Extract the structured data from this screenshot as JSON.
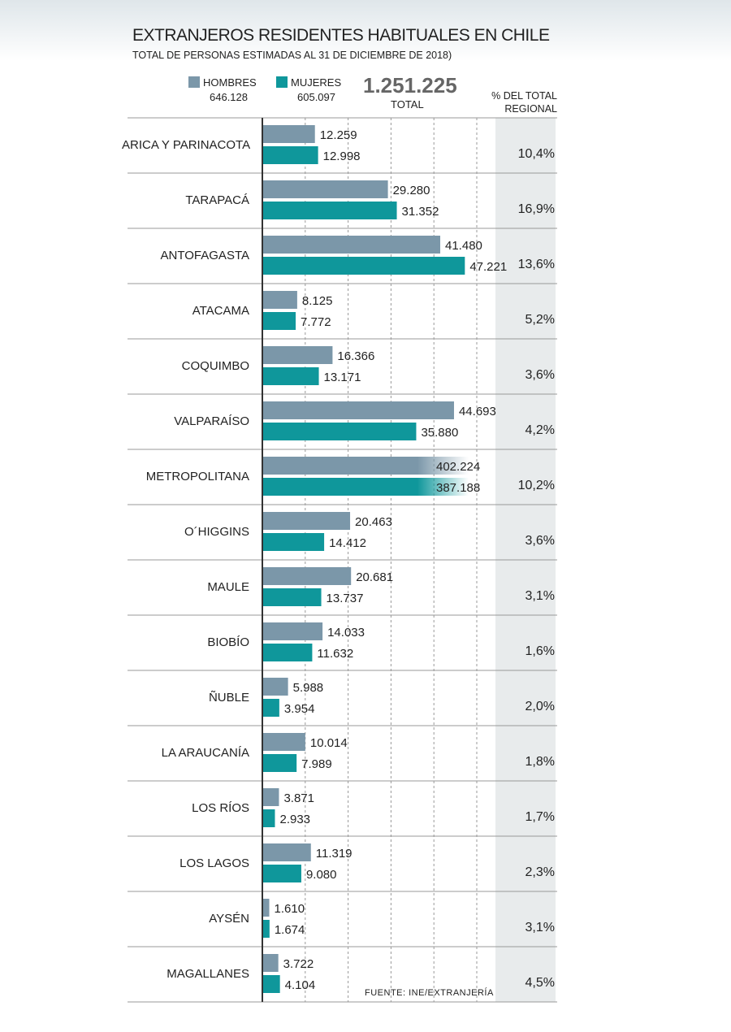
{
  "chart_data": {
    "type": "bar",
    "orientation": "horizontal",
    "title": "EXTRANJEROS RESIDENTES HABITUALES EN CHILE",
    "subtitle": "TOTAL DE PERSONAS ESTIMADAS AL 31 DE DICIEMBRE DE 2018)",
    "categories": [
      "ARICA Y PARINACOTA",
      "TARAPACÁ",
      "ANTOFAGASTA",
      "ATACAMA",
      "COQUIMBO",
      "VALPARAÍSO",
      "METROPOLITANA",
      "O´HIGGINS",
      "MAULE",
      "BIOBÍO",
      "ÑUBLE",
      "LA ARAUCANÍA",
      "LOS RÍOS",
      "LOS LAGOS",
      "AYSÉN",
      "MAGALLANES"
    ],
    "series": [
      {
        "name": "HOMBRES",
        "color": "#7b97a9",
        "total": 646128,
        "total_label": "646.128",
        "values": [
          12259,
          29280,
          41480,
          8125,
          16366,
          44693,
          402224,
          20463,
          20681,
          14033,
          5988,
          10014,
          3871,
          11319,
          1610,
          3722
        ],
        "value_labels": [
          "12.259",
          "29.280",
          "41.480",
          "8.125",
          "16.366",
          "44.693",
          "402.224",
          "20.463",
          "20.681",
          "14.033",
          "5.988",
          "10.014",
          "3.871",
          "11.319",
          "1.610",
          "3.722"
        ]
      },
      {
        "name": "MUJERES",
        "color": "#0f979b",
        "total": 605097,
        "total_label": "605.097",
        "values": [
          12998,
          31352,
          47221,
          7772,
          13171,
          35880,
          387188,
          14412,
          13737,
          11632,
          3954,
          7989,
          2933,
          9080,
          1674,
          4104
        ],
        "value_labels": [
          "12.998",
          "31.352",
          "47.221",
          "7.772",
          "13.171",
          "35.880",
          "387.188",
          "14.412",
          "13.737",
          "11.632",
          "3.954",
          "7.989",
          "2.933",
          "9.080",
          "1.674",
          "4.104"
        ]
      }
    ],
    "total": 1251225,
    "total_label": "1.251.225",
    "total_caption": "TOTAL",
    "share_header": "% DEL TOTAL REGIONAL",
    "shares": [
      10.4,
      16.9,
      13.6,
      5.2,
      3.6,
      4.2,
      10.2,
      3.6,
      3.1,
      1.6,
      2.0,
      1.8,
      1.7,
      2.3,
      3.1,
      4.5
    ],
    "share_labels": [
      "10,4%",
      "16,9%",
      "13,6%",
      "5,2%",
      "3,6%",
      "4,2%",
      "10,2%",
      "3,6%",
      "3,1%",
      "1,6%",
      "2,0%",
      "1,8%",
      "1,7%",
      "2,3%",
      "3,1%",
      "4,5%"
    ],
    "xlim": [
      0,
      50000
    ],
    "xticks": [
      0,
      10000,
      20000,
      30000,
      40000,
      50000
    ],
    "grid": true,
    "source": "FUENTE: INE/EXTRANJERÍA"
  }
}
